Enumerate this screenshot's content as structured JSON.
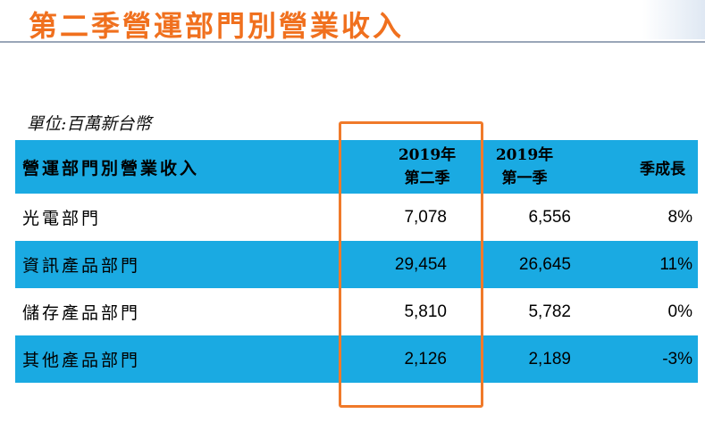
{
  "title": "第二季營運部門別營業收入",
  "unit": "單位:百萬新台幣",
  "colors": {
    "title": "#f0701e",
    "header_bg": "#1aaae2",
    "alt_row_bg": "#1aaae2",
    "highlight": "#f07a2a"
  },
  "table": {
    "header": {
      "col0": "營運部門別營業收入",
      "col1_line1": "2019年",
      "col1_line2": "第二季",
      "col2_line1": "2019年",
      "col2_line2": "第一季",
      "col3": "季成長"
    },
    "rows": [
      {
        "name": "光電部門",
        "q2": "7,078",
        "q1": "6,556",
        "growth": "8%"
      },
      {
        "name": "資訊產品部門",
        "q2": "29,454",
        "q1": "26,645",
        "growth": "11%"
      },
      {
        "name": "儲存產品部門",
        "q2": "5,810",
        "q1": "5,782",
        "growth": "0%"
      },
      {
        "name": "其他產品部門",
        "q2": "2,126",
        "q1": "2,189",
        "growth": "-3%"
      }
    ]
  }
}
